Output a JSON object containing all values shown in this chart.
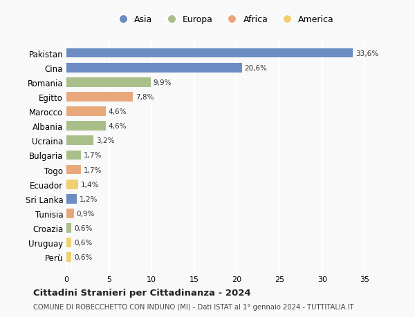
{
  "countries": [
    "Pakistan",
    "Cina",
    "Romania",
    "Egitto",
    "Marocco",
    "Albania",
    "Ucraina",
    "Bulgaria",
    "Togo",
    "Ecuador",
    "Sri Lanka",
    "Tunisia",
    "Croazia",
    "Uruguay",
    "Perù"
  ],
  "values": [
    33.6,
    20.6,
    9.9,
    7.8,
    4.6,
    4.6,
    3.2,
    1.7,
    1.7,
    1.4,
    1.2,
    0.9,
    0.6,
    0.6,
    0.6
  ],
  "labels": [
    "33,6%",
    "20,6%",
    "9,9%",
    "7,8%",
    "4,6%",
    "4,6%",
    "3,2%",
    "1,7%",
    "1,7%",
    "1,4%",
    "1,2%",
    "0,9%",
    "0,6%",
    "0,6%",
    "0,6%"
  ],
  "continents": [
    "Asia",
    "Asia",
    "Europa",
    "Africa",
    "Africa",
    "Europa",
    "Europa",
    "Europa",
    "Africa",
    "America",
    "Asia",
    "Africa",
    "Europa",
    "America",
    "America"
  ],
  "colors": {
    "Asia": "#6b8dc4",
    "Europa": "#a8bf8a",
    "Africa": "#e8a87c",
    "America": "#f0d070"
  },
  "legend_order": [
    "Asia",
    "Europa",
    "Africa",
    "America"
  ],
  "title": "Cittadini Stranieri per Cittadinanza - 2024",
  "subtitle": "COMUNE DI ROBECCHETTO CON INDUNO (MI) - Dati ISTAT al 1° gennaio 2024 - TUTTITALIA.IT",
  "xlim": [
    0,
    37
  ],
  "xticks": [
    0,
    5,
    10,
    15,
    20,
    25,
    30,
    35
  ],
  "background_color": "#f9f9f9",
  "grid_color": "#ffffff"
}
